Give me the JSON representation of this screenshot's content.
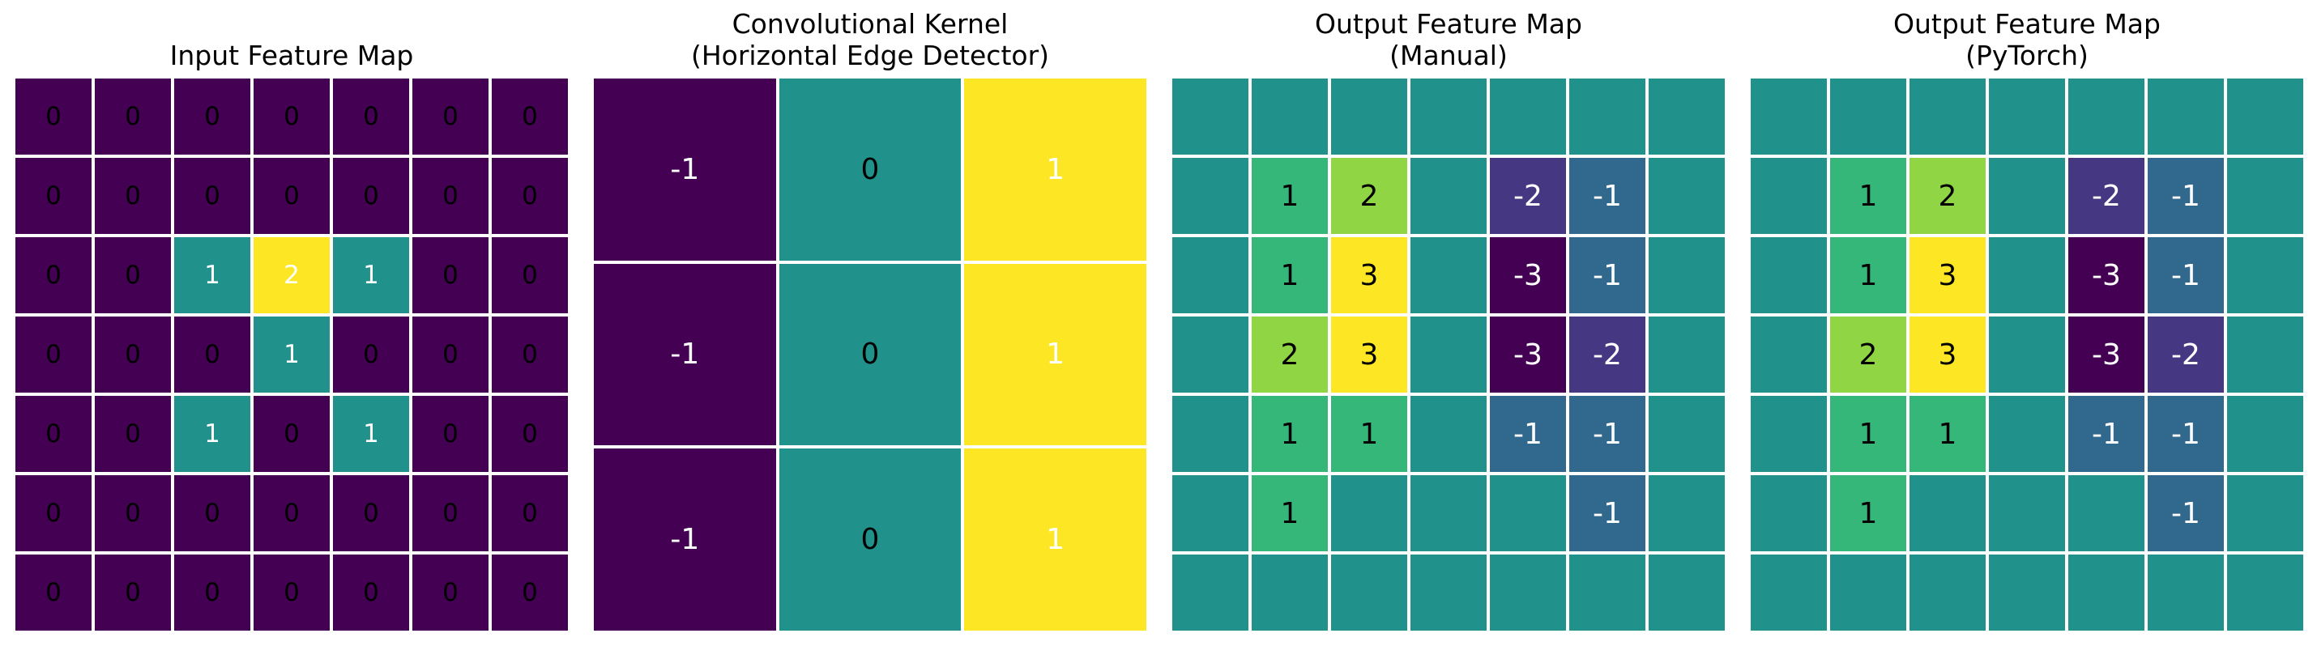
{
  "chart_data": [
    {
      "type": "heatmap",
      "title": "Input Feature Map",
      "colormap": "viridis",
      "vmin": 0,
      "vmax": 2,
      "annotate_zeros": true,
      "matrix": [
        [
          0,
          0,
          0,
          0,
          0,
          0,
          0
        ],
        [
          0,
          0,
          0,
          0,
          0,
          0,
          0
        ],
        [
          0,
          0,
          1,
          2,
          1,
          0,
          0
        ],
        [
          0,
          0,
          0,
          1,
          0,
          0,
          0
        ],
        [
          0,
          0,
          1,
          0,
          1,
          0,
          0
        ],
        [
          0,
          0,
          0,
          0,
          0,
          0,
          0
        ],
        [
          0,
          0,
          0,
          0,
          0,
          0,
          0
        ]
      ]
    },
    {
      "type": "heatmap",
      "title": "Convolutional Kernel\n(Horizontal Edge Detector)",
      "colormap": "viridis",
      "vmin": -1,
      "vmax": 1,
      "annotate_zeros": true,
      "matrix": [
        [
          -1,
          0,
          1
        ],
        [
          -1,
          0,
          1
        ],
        [
          -1,
          0,
          1
        ]
      ]
    },
    {
      "type": "heatmap",
      "title": "Output Feature Map\n(Manual)",
      "colormap": "viridis",
      "vmin": -3,
      "vmax": 3,
      "annotate_zeros": false,
      "matrix": [
        [
          0,
          0,
          0,
          0,
          0,
          0,
          0
        ],
        [
          0,
          1,
          2,
          0,
          -2,
          -1,
          0
        ],
        [
          0,
          1,
          3,
          0,
          -3,
          -1,
          0
        ],
        [
          0,
          2,
          3,
          0,
          -3,
          -2,
          0
        ],
        [
          0,
          1,
          1,
          0,
          -1,
          -1,
          0
        ],
        [
          0,
          1,
          0,
          0,
          0,
          -1,
          0
        ],
        [
          0,
          0,
          0,
          0,
          0,
          0,
          0
        ]
      ]
    },
    {
      "type": "heatmap",
      "title": "Output Feature Map\n(PyTorch)",
      "colormap": "viridis",
      "vmin": -3,
      "vmax": 3,
      "annotate_zeros": false,
      "matrix": [
        [
          0,
          0,
          0,
          0,
          0,
          0,
          0
        ],
        [
          0,
          1,
          2,
          0,
          -2,
          -1,
          0
        ],
        [
          0,
          1,
          3,
          0,
          -3,
          -1,
          0
        ],
        [
          0,
          2,
          3,
          0,
          -3,
          -2,
          0
        ],
        [
          0,
          1,
          1,
          0,
          -1,
          -1,
          0
        ],
        [
          0,
          1,
          0,
          0,
          0,
          -1,
          0
        ],
        [
          0,
          0,
          0,
          0,
          0,
          0,
          0
        ]
      ]
    }
  ],
  "style": {
    "background": "#ffffff",
    "grid_line_color": "#ffffff",
    "cell_colors": [
      {
        "0": {
          "bg": "#440154",
          "fg": "#000000"
        },
        "1": {
          "bg": "#21918c",
          "fg": "#ffffff"
        },
        "2": {
          "bg": "#fde725",
          "fg": "#ffffff"
        }
      },
      {
        "-1": {
          "bg": "#440154",
          "fg": "#ffffff"
        },
        "0": {
          "bg": "#21918c",
          "fg": "#000000"
        },
        "1": {
          "bg": "#fde725",
          "fg": "#ffffff"
        }
      },
      {
        "-3": {
          "bg": "#440154",
          "fg": "#ffffff"
        },
        "-2": {
          "bg": "#453781",
          "fg": "#ffffff"
        },
        "-1": {
          "bg": "#31688e",
          "fg": "#ffffff"
        },
        "0": {
          "bg": "#21918c"
        },
        "1": {
          "bg": "#35b779",
          "fg": "#000000"
        },
        "2": {
          "bg": "#90d543",
          "fg": "#000000"
        },
        "3": {
          "bg": "#fde725",
          "fg": "#000000"
        }
      },
      {
        "-3": {
          "bg": "#440154",
          "fg": "#ffffff"
        },
        "-2": {
          "bg": "#453781",
          "fg": "#ffffff"
        },
        "-1": {
          "bg": "#31688e",
          "fg": "#ffffff"
        },
        "0": {
          "bg": "#21918c"
        },
        "1": {
          "bg": "#35b779",
          "fg": "#000000"
        },
        "2": {
          "bg": "#90d543",
          "fg": "#000000"
        },
        "3": {
          "bg": "#fde725",
          "fg": "#000000"
        }
      }
    ]
  }
}
